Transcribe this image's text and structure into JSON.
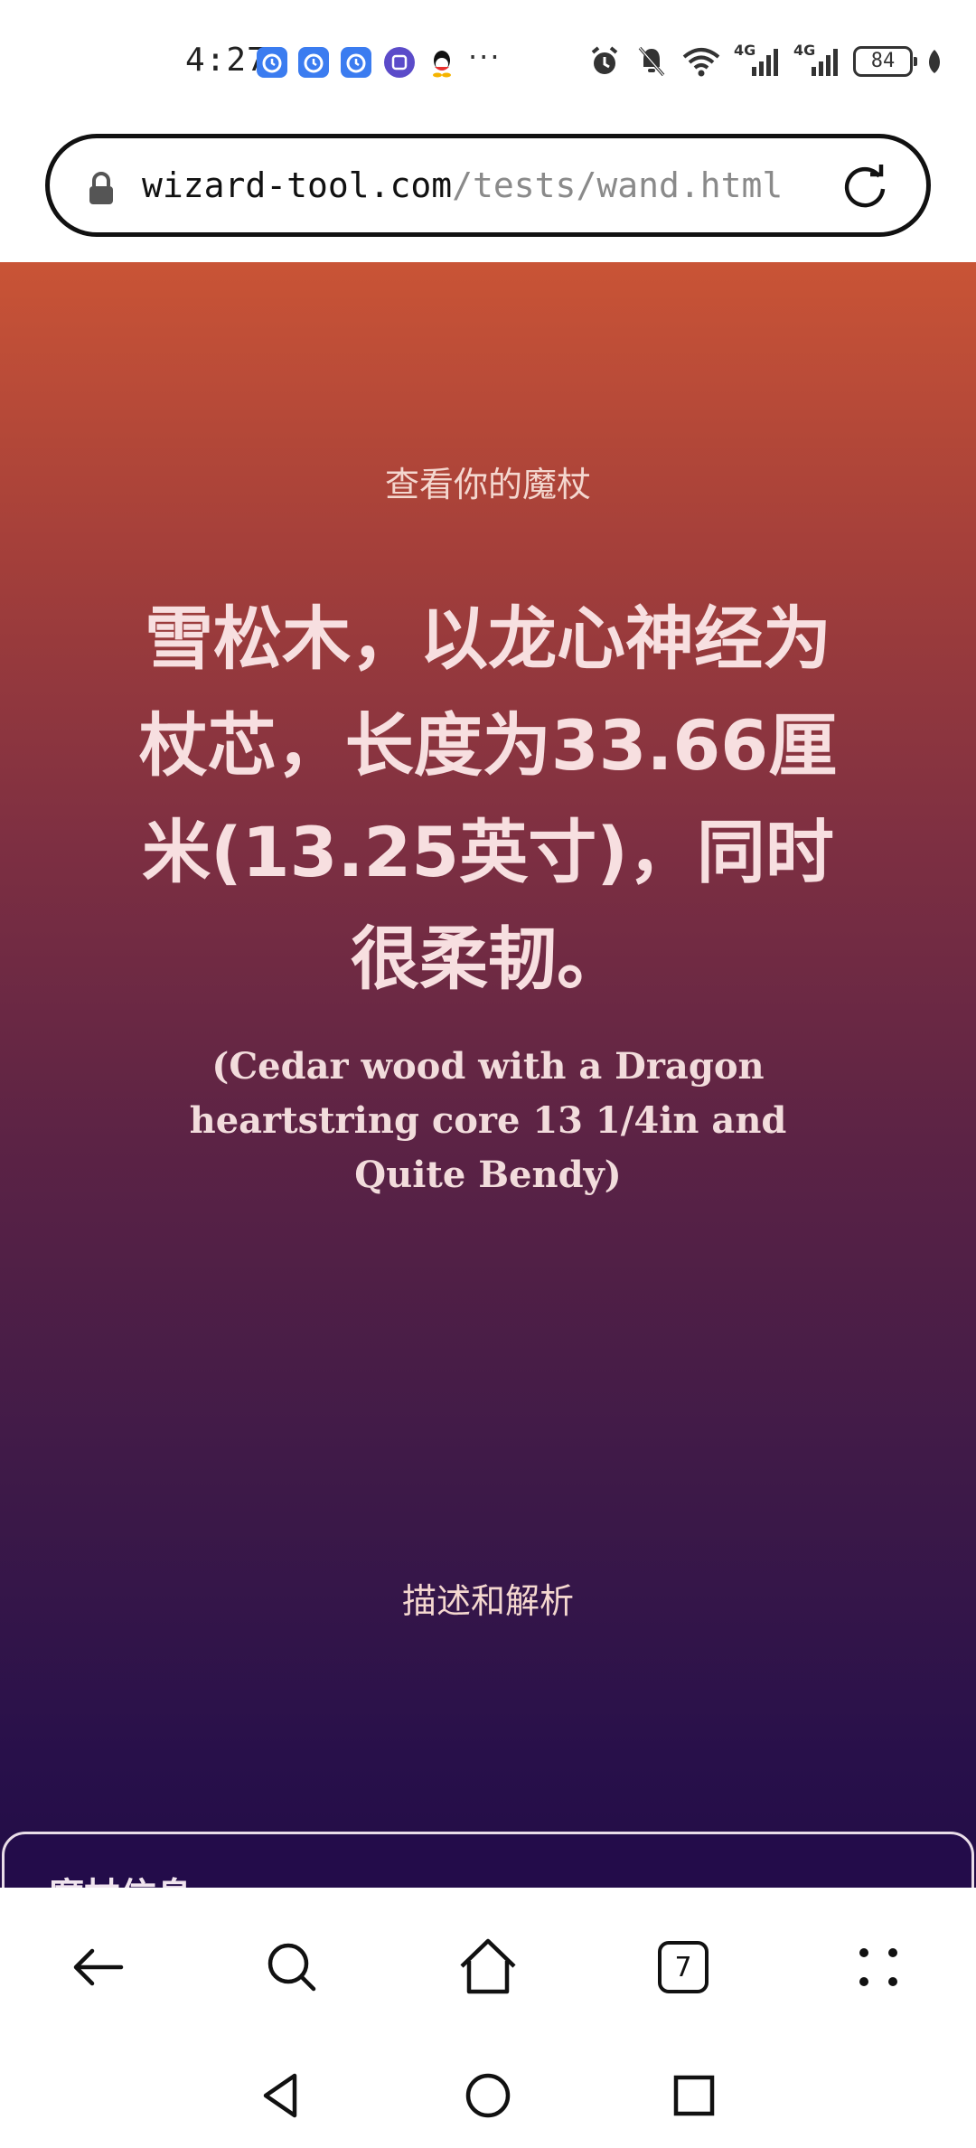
{
  "status_bar": {
    "time": "4:27",
    "app_icons": [
      "alarm-app-icon",
      "alarm-app-icon",
      "alarm-app-icon",
      "tieba-icon",
      "qq-icon"
    ],
    "more": "···",
    "network_1": "4G",
    "network_2": "4G",
    "battery": "84"
  },
  "browser": {
    "url_host": "wizard-tool.com",
    "url_path": "/tests/wand.html",
    "tab_count": "7"
  },
  "page": {
    "kicker": "查看你的魔杖",
    "headline": "雪松木，以龙心神经为杖芯，长度为33.66厘米(13.25英寸)，同时很柔韧。",
    "subtitle": "(Cedar wood with a Dragon heartstring core 13 1/4in and Quite Bendy)",
    "section_label": "描述和解析",
    "card_title": "魔杖信息"
  },
  "colors": {
    "gradient_top": "#c95436",
    "gradient_bottom": "#220c47",
    "headline_text": "#f7dfe0"
  }
}
